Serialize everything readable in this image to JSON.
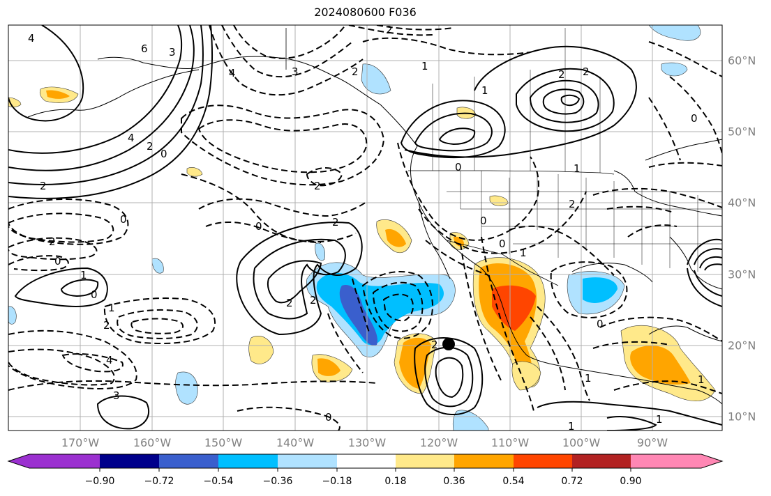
{
  "title": "2024080600 F036",
  "longitude_labels": [
    "170°W",
    "160°W",
    "150°W",
    "140°W",
    "130°W",
    "120°W",
    "110°W",
    "100°W",
    "90°W"
  ],
  "latitude_labels": [
    "60°N",
    "50°N",
    "40°N",
    "30°N",
    "20°N",
    "10°N"
  ],
  "colorbar": {
    "tick_labels": [
      "−0.90",
      "−0.72",
      "−0.54",
      "−0.36",
      "−0.18",
      "0.18",
      "0.36",
      "0.54",
      "0.72",
      "0.90"
    ],
    "colors": [
      "#9b30d0",
      "#00008b",
      "#3a5fcd",
      "#00bfff",
      "#b0e2ff",
      "#ffffff",
      "#ffe98a",
      "#ffa500",
      "#ff4500",
      "#b22222",
      "#ff87b4"
    ]
  },
  "contour_labels": [
    "4",
    "6",
    "3",
    "4",
    "3",
    "2",
    "2",
    "1",
    "4",
    "2",
    "0",
    "2",
    "2",
    "0",
    "2",
    "2",
    "2",
    "4",
    "3",
    "0",
    "1",
    "2",
    "2",
    "0",
    "0",
    "1",
    "2",
    "1",
    "0",
    "0",
    "1",
    "2",
    "2",
    "2",
    "0",
    "1",
    "1",
    "1",
    "0",
    "0",
    "1",
    "0",
    "1"
  ],
  "map_features": {
    "coastlines": true,
    "country_borders": true,
    "state_borders": true,
    "gridlines": true
  }
}
